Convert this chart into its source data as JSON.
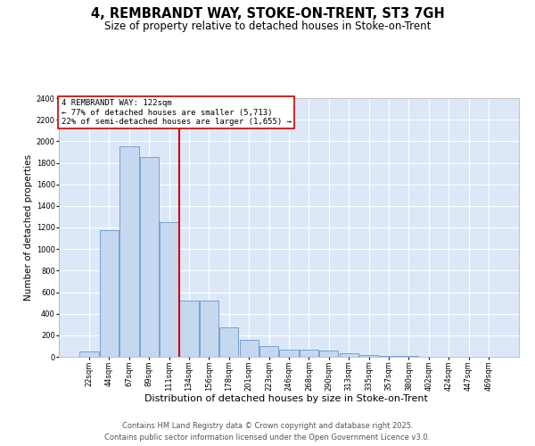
{
  "title": "4, REMBRANDT WAY, STOKE-ON-TRENT, ST3 7GH",
  "subtitle": "Size of property relative to detached houses in Stoke-on-Trent",
  "xlabel": "Distribution of detached houses by size in Stoke-on-Trent",
  "ylabel": "Number of detached properties",
  "categories": [
    "22sqm",
    "44sqm",
    "67sqm",
    "89sqm",
    "111sqm",
    "134sqm",
    "156sqm",
    "178sqm",
    "201sqm",
    "223sqm",
    "246sqm",
    "268sqm",
    "290sqm",
    "313sqm",
    "335sqm",
    "357sqm",
    "380sqm",
    "402sqm",
    "424sqm",
    "447sqm",
    "469sqm"
  ],
  "values": [
    50,
    1175,
    1950,
    1850,
    1250,
    520,
    520,
    270,
    160,
    100,
    70,
    65,
    55,
    35,
    20,
    10,
    5,
    3,
    2,
    1,
    1
  ],
  "bar_color": "#c5d8f0",
  "bar_edge_color": "#6699cc",
  "plot_bg_color": "#dce8f8",
  "grid_color": "#ffffff",
  "vline_position": 4.5,
  "vline_color": "#cc0000",
  "annotation_title": "4 REMBRANDT WAY: 122sqm",
  "annotation_line1": "← 77% of detached houses are smaller (5,713)",
  "annotation_line2": "22% of semi-detached houses are larger (1,655) →",
  "ylim_max": 2400,
  "ytick_step": 200,
  "footer1": "Contains HM Land Registry data © Crown copyright and database right 2025.",
  "footer2": "Contains public sector information licensed under the Open Government Licence v3.0.",
  "title_fontsize": 10.5,
  "subtitle_fontsize": 8.5,
  "ylabel_fontsize": 7.5,
  "xlabel_fontsize": 8,
  "tick_fontsize": 6,
  "annotation_fontsize": 6.5,
  "footer_fontsize": 6
}
